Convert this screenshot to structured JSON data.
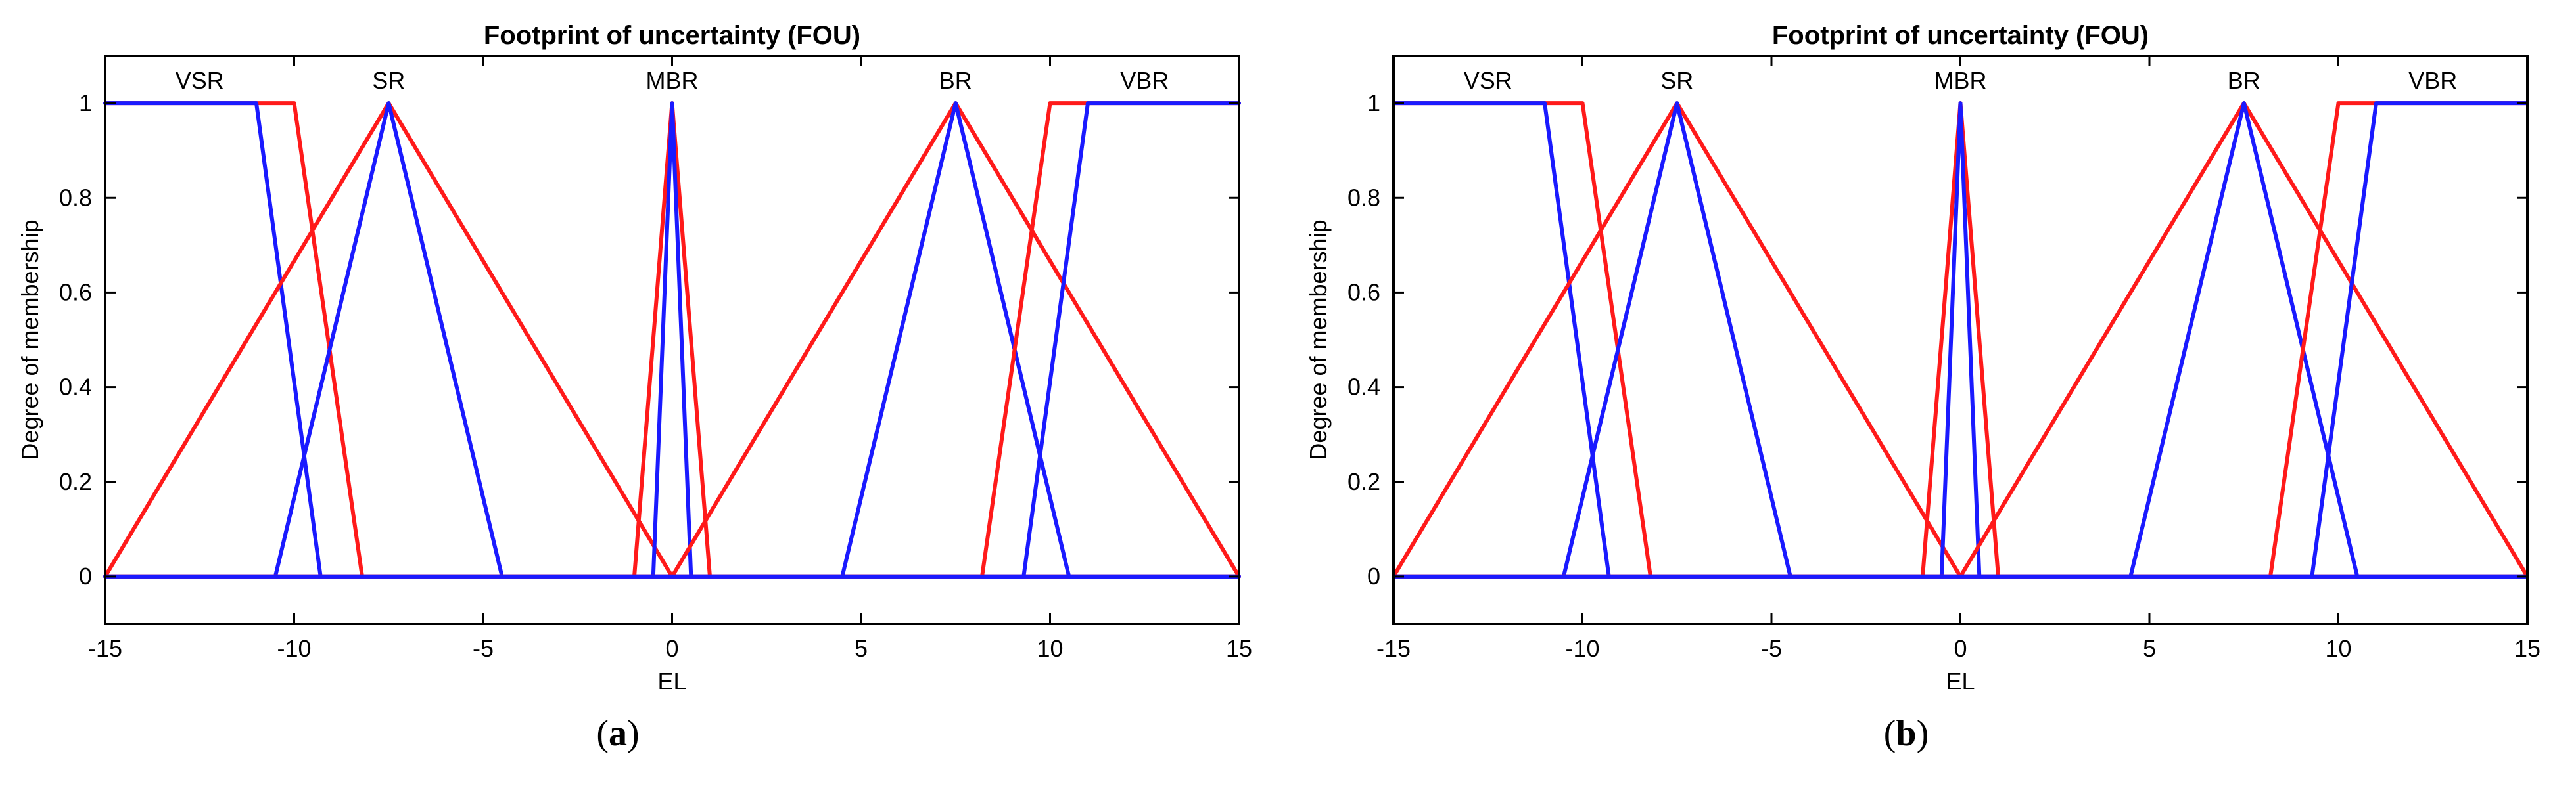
{
  "colors": {
    "upper": "#ff1a1a",
    "lower": "#1a1aff",
    "axes": "#000000"
  },
  "chart_data": [
    {
      "type": "line",
      "caption": "a",
      "title": "Footprint of uncertainty (FOU)",
      "xlabel": "EL",
      "ylabel": "Degree of membership",
      "xlim": [
        -15,
        15
      ],
      "ylim": [
        -0.1,
        1.1
      ],
      "xticks": [
        "-15",
        "-10",
        "-5",
        "0",
        "5",
        "10",
        "15"
      ],
      "yticks": [
        "0",
        "0.2",
        "0.4",
        "0.6",
        "0.8",
        "1"
      ],
      "grid": false,
      "set_labels": [
        "VSR",
        "SR",
        "MBR",
        "BR",
        "VBR"
      ],
      "series": [
        {
          "set": "VSR",
          "bound": "upper",
          "x": [
            -15,
            -10,
            -8.2,
            15
          ],
          "y": [
            1,
            1,
            0,
            0
          ]
        },
        {
          "set": "VSR",
          "bound": "lower",
          "x": [
            -15,
            -11,
            -9.3,
            15
          ],
          "y": [
            1,
            1,
            0,
            0
          ]
        },
        {
          "set": "SR",
          "bound": "upper",
          "x": [
            -15,
            -7.5,
            0,
            15
          ],
          "y": [
            0,
            1,
            0,
            0
          ]
        },
        {
          "set": "SR",
          "bound": "lower",
          "x": [
            -15,
            -10.5,
            -7.5,
            -4.5,
            15
          ],
          "y": [
            0,
            0,
            1,
            0,
            0
          ]
        },
        {
          "set": "MBR",
          "bound": "upper",
          "x": [
            -15,
            -1,
            0,
            1,
            15
          ],
          "y": [
            0,
            0,
            1,
            0,
            0
          ]
        },
        {
          "set": "MBR",
          "bound": "lower",
          "x": [
            -15,
            -0.5,
            0,
            0.5,
            15
          ],
          "y": [
            0,
            0,
            1,
            0,
            0
          ]
        },
        {
          "set": "BR",
          "bound": "upper",
          "x": [
            -15,
            0,
            7.5,
            15
          ],
          "y": [
            0,
            0,
            1,
            0
          ]
        },
        {
          "set": "BR",
          "bound": "lower",
          "x": [
            -15,
            4.5,
            7.5,
            10.5,
            15
          ],
          "y": [
            0,
            0,
            1,
            0,
            0
          ]
        },
        {
          "set": "VBR",
          "bound": "upper",
          "x": [
            -15,
            8.2,
            10,
            15
          ],
          "y": [
            0,
            0,
            1,
            1
          ]
        },
        {
          "set": "VBR",
          "bound": "lower",
          "x": [
            -15,
            9.3,
            11,
            15
          ],
          "y": [
            0,
            0,
            1,
            1
          ]
        }
      ]
    },
    {
      "type": "line",
      "caption": "b",
      "title": "Footprint of uncertainty (FOU)",
      "xlabel": "EL",
      "ylabel": "Degree of membership",
      "xlim": [
        -15,
        15
      ],
      "ylim": [
        -0.1,
        1.1
      ],
      "xticks": [
        "-15",
        "-10",
        "-5",
        "0",
        "5",
        "10",
        "15"
      ],
      "yticks": [
        "0",
        "0.2",
        "0.4",
        "0.6",
        "0.8",
        "1"
      ],
      "grid": false,
      "set_labels": [
        "VSR",
        "SR",
        "MBR",
        "BR",
        "VBR"
      ],
      "series": [
        {
          "set": "VSR",
          "bound": "upper",
          "x": [
            -15,
            -10,
            -8.2,
            15
          ],
          "y": [
            1,
            1,
            0,
            0
          ]
        },
        {
          "set": "VSR",
          "bound": "lower",
          "x": [
            -15,
            -11,
            -9.3,
            15
          ],
          "y": [
            1,
            1,
            0,
            0
          ]
        },
        {
          "set": "SR",
          "bound": "upper",
          "x": [
            -15,
            -7.5,
            0,
            15
          ],
          "y": [
            0,
            1,
            0,
            0
          ]
        },
        {
          "set": "SR",
          "bound": "lower",
          "x": [
            -15,
            -10.5,
            -7.5,
            -4.5,
            15
          ],
          "y": [
            0,
            0,
            1,
            0,
            0
          ]
        },
        {
          "set": "MBR",
          "bound": "upper",
          "x": [
            -15,
            -1,
            0,
            1,
            15
          ],
          "y": [
            0,
            0,
            1,
            0,
            0
          ]
        },
        {
          "set": "MBR",
          "bound": "lower",
          "x": [
            -15,
            -0.5,
            0,
            0.5,
            15
          ],
          "y": [
            0,
            0,
            1,
            0,
            0
          ]
        },
        {
          "set": "BR",
          "bound": "upper",
          "x": [
            -15,
            0,
            7.5,
            15
          ],
          "y": [
            0,
            0,
            1,
            0
          ]
        },
        {
          "set": "BR",
          "bound": "lower",
          "x": [
            -15,
            4.5,
            7.5,
            10.5,
            15
          ],
          "y": [
            0,
            0,
            1,
            0,
            0
          ]
        },
        {
          "set": "VBR",
          "bound": "upper",
          "x": [
            -15,
            8.2,
            10,
            15
          ],
          "y": [
            0,
            0,
            1,
            1
          ]
        },
        {
          "set": "VBR",
          "bound": "lower",
          "x": [
            -15,
            9.3,
            11,
            15
          ],
          "y": [
            0,
            0,
            1,
            1
          ]
        }
      ]
    }
  ]
}
